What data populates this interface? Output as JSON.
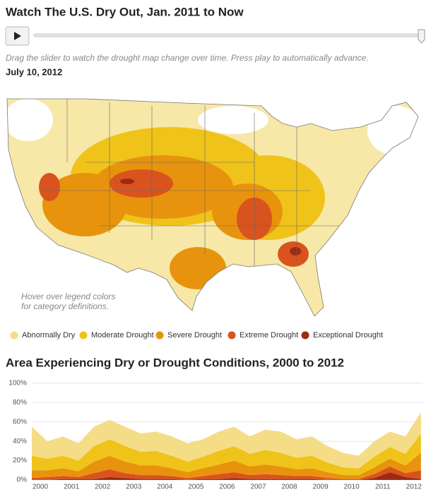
{
  "header": {
    "title": "Watch The U.S. Dry Out, Jan. 2011 to Now",
    "hint": "Drag the slider to watch the drought map change over time. Press play to automatically advance.",
    "date": "July 10, 2012"
  },
  "map": {
    "note": [
      "Hover over legend colors",
      "for category definitions."
    ]
  },
  "chart_data": {
    "type": "stacked-area",
    "title": "Area Experiencing Dry or Drought Conditions, 2000 to 2012",
    "x": [
      2000,
      2000.5,
      2001,
      2001.5,
      2002,
      2002.5,
      2003,
      2003.5,
      2004,
      2004.5,
      2005,
      2005.5,
      2006,
      2006.5,
      2007,
      2007.5,
      2008,
      2008.5,
      2009,
      2009.5,
      2010,
      2010.5,
      2011,
      2011.5,
      2012,
      2012.5
    ],
    "xlim": [
      2000,
      2012.55
    ],
    "xticks": [
      2000,
      2001,
      2002,
      2003,
      2004,
      2005,
      2006,
      2007,
      2008,
      2009,
      2010,
      2011,
      2012
    ],
    "ylim": [
      0,
      100
    ],
    "yticks": [
      {
        "value": 0,
        "label": "0%"
      },
      {
        "value": 20,
        "label": "20%"
      },
      {
        "value": 40,
        "label": "40%"
      },
      {
        "value": 60,
        "label": "60%"
      },
      {
        "value": 80,
        "label": "80%"
      },
      {
        "value": 100,
        "label": "100%"
      }
    ],
    "grid": true,
    "series": [
      {
        "name": "Abnormally Dry",
        "color": "#f5dc86",
        "values": [
          30,
          18,
          20,
          18,
          20,
          20,
          20,
          19,
          20,
          20,
          19,
          18,
          20,
          20,
          18,
          21,
          22,
          19,
          20,
          17,
          15,
          13,
          16,
          16,
          18,
          22
        ]
      },
      {
        "name": "Moderate Drought",
        "color": "#f0c31a",
        "values": [
          15,
          12,
          13,
          11,
          16,
          17,
          16,
          14,
          15,
          13,
          11,
          12,
          14,
          15,
          13,
          15,
          14,
          12,
          13,
          10,
          8,
          7,
          11,
          12,
          12,
          20
        ]
      },
      {
        "name": "Severe Drought",
        "color": "#e8930d",
        "values": [
          8,
          7,
          8,
          6,
          12,
          14,
          12,
          10,
          10,
          8,
          6,
          8,
          10,
          12,
          9,
          10,
          9,
          7,
          8,
          6,
          4,
          4,
          7,
          8,
          8,
          18
        ]
      },
      {
        "name": "Extreme Drought",
        "color": "#d9531e",
        "values": [
          2,
          3,
          3,
          2,
          6,
          8,
          5,
          4,
          4,
          3,
          2,
          3,
          5,
          6,
          4,
          5,
          4,
          3,
          3,
          2,
          1,
          1,
          4,
          6,
          4,
          9
        ]
      },
      {
        "name": "Exceptional Drought",
        "color": "#9c2b14",
        "values": [
          0,
          0,
          1,
          1,
          1,
          3,
          2,
          1,
          1,
          1,
          0,
          1,
          1,
          2,
          1,
          1,
          1,
          1,
          1,
          0,
          0,
          0,
          2,
          8,
          3,
          1
        ]
      }
    ]
  }
}
